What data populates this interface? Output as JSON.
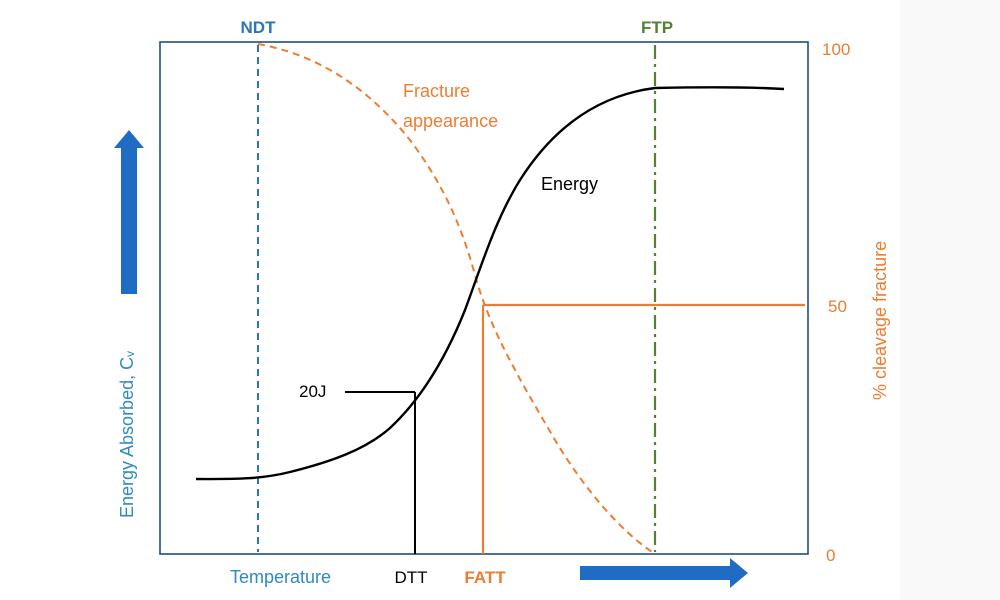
{
  "labels": {
    "ndt": "NDT",
    "ftp": "FTP",
    "fracture_appearance_line1": "Fracture",
    "fracture_appearance_line2": "appearance",
    "energy": "Energy",
    "j20": "20J",
    "temperature": "Temperature",
    "dtt": "DTT",
    "fatt": "FATT",
    "left_axis": "Energy Absorbed, Cᵥ",
    "right_axis": "% cleavage fracture",
    "right_tick_100": "100",
    "right_tick_50": "50",
    "right_tick_0": "0"
  },
  "colors": {
    "frame": "#1f4e79",
    "ndt": "#2e75b6",
    "ftp": "#548235",
    "orange": "#ed7d31",
    "black": "#000000",
    "arrow": "#1f6cc4",
    "axis_label": "#2e8bc0"
  },
  "icons": {
    "up_arrow": "arrow-up-icon",
    "right_arrow": "arrow-right-icon"
  }
}
